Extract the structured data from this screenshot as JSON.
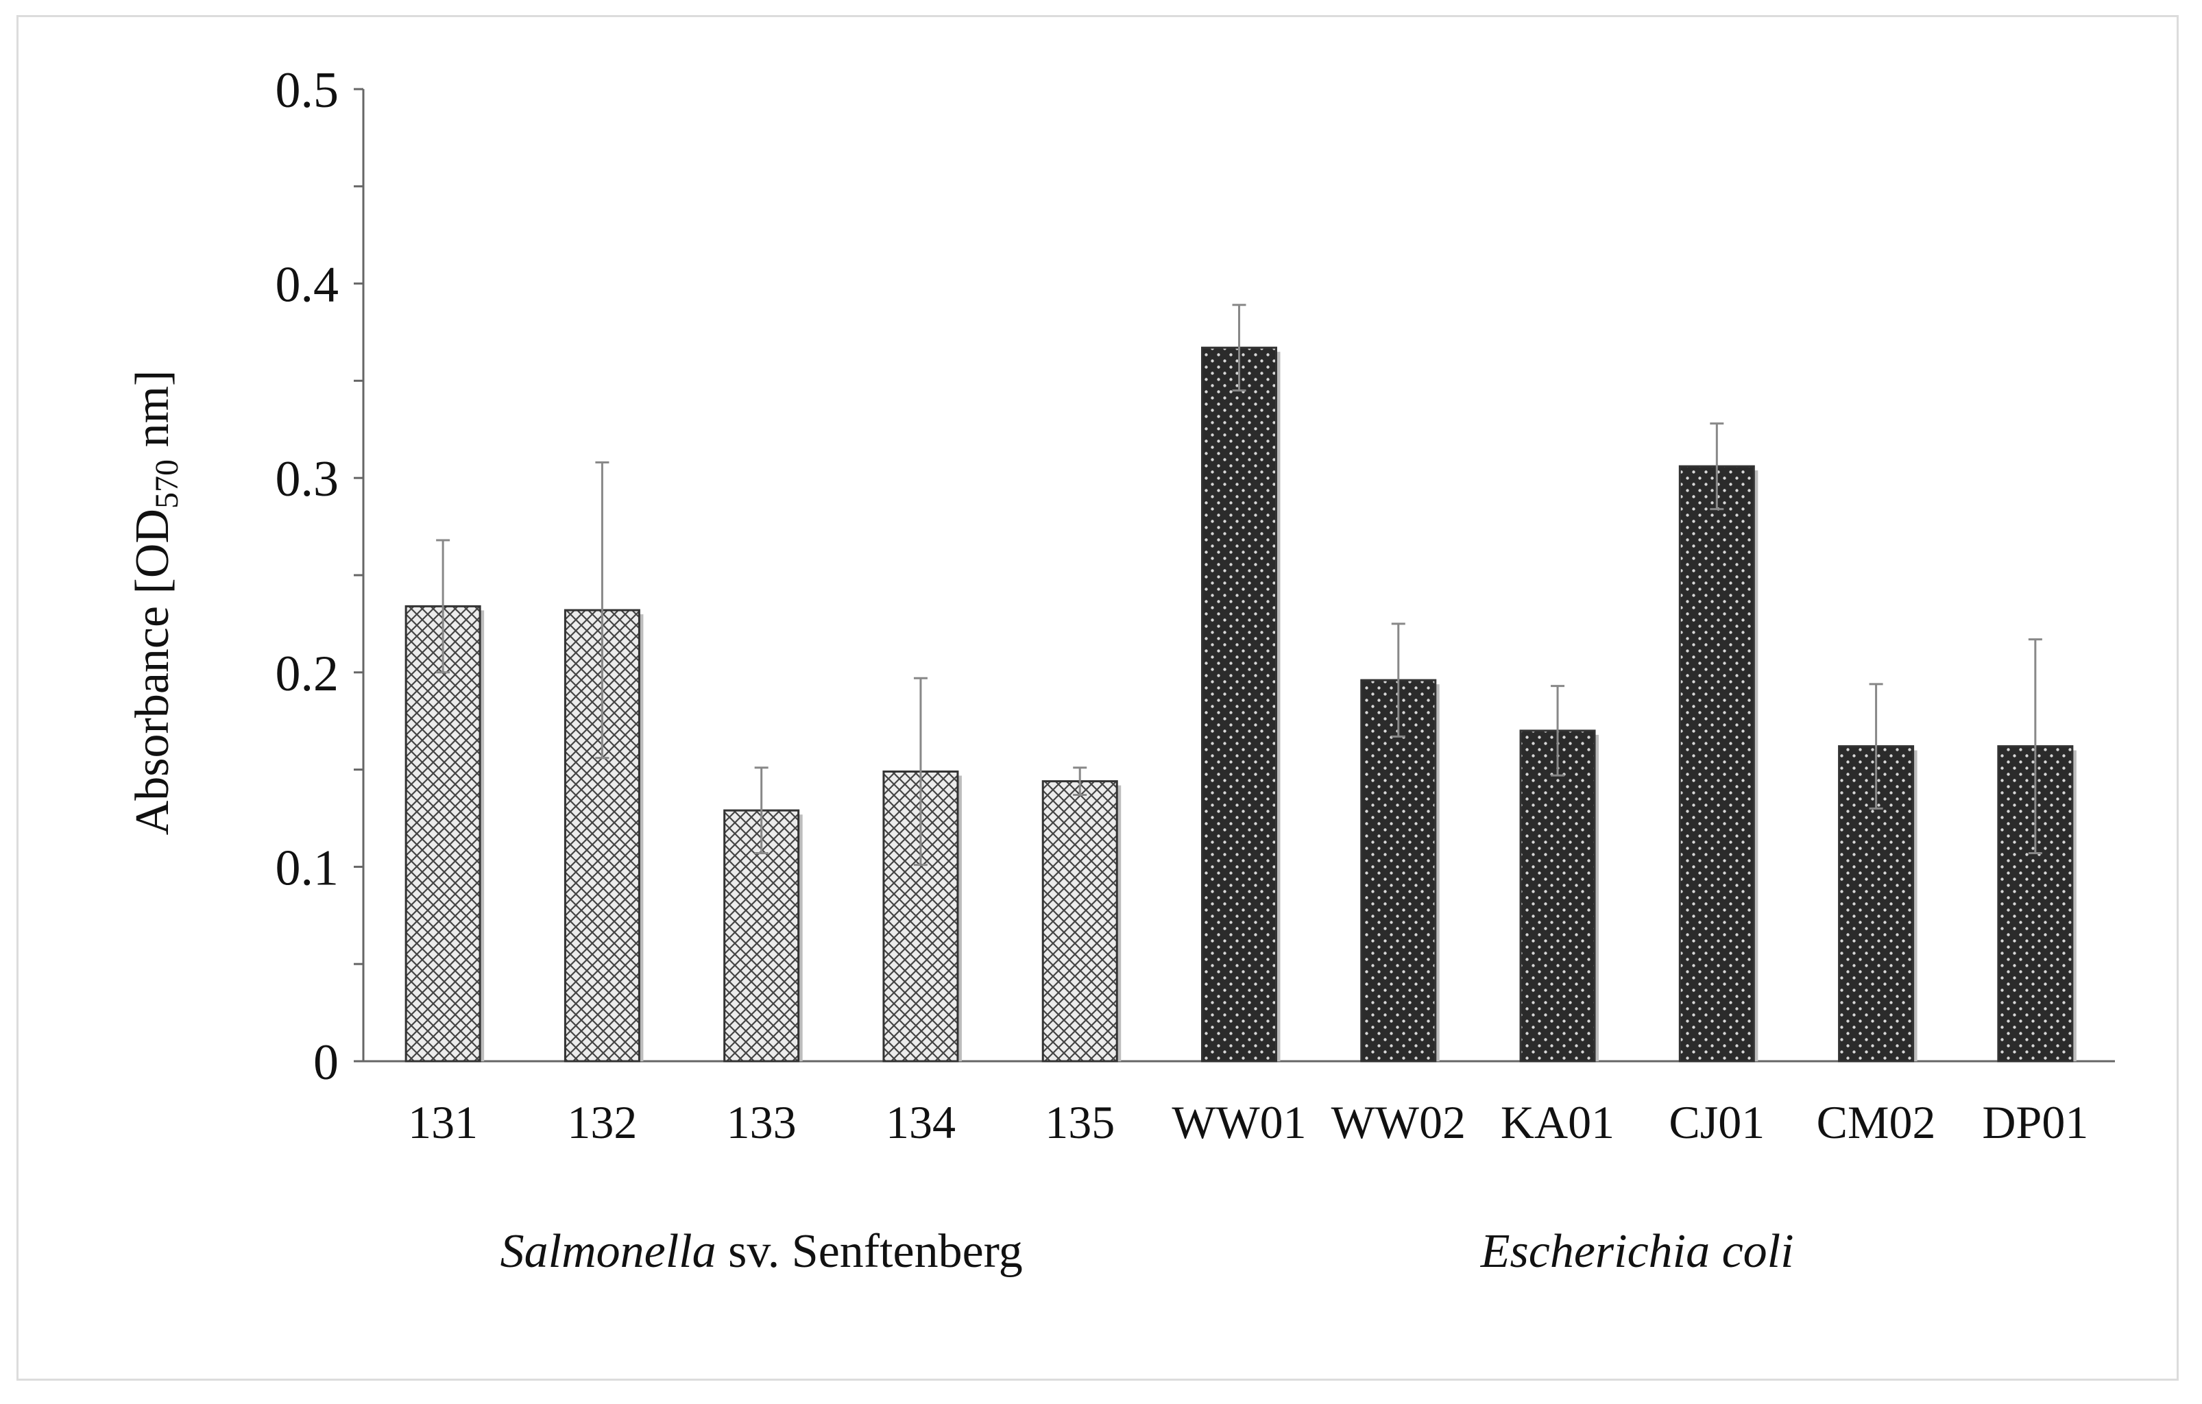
{
  "chart_data": {
    "type": "bar",
    "title": "",
    "xlabel": "",
    "ylabel": "Absorbance [OD570 nm]",
    "ylabel_parts": {
      "prefix": "Absorbance [OD",
      "subscript": "570",
      "suffix": " nm]"
    },
    "ylim": [
      0,
      0.5
    ],
    "yticks": [
      {
        "value": 0,
        "label": "0"
      },
      {
        "value": 0.1,
        "label": "0.1"
      },
      {
        "value": 0.2,
        "label": "0.2"
      },
      {
        "value": 0.3,
        "label": "0.3"
      },
      {
        "value": 0.4,
        "label": "0.4"
      },
      {
        "value": 0.5,
        "label": "0.5"
      }
    ],
    "minor_tick_step": 0.05,
    "grid": false,
    "categories": [
      "131",
      "132",
      "133",
      "134",
      "135",
      "WW01",
      "WW02",
      "KA01",
      "CJ01",
      "CM02",
      "DP01"
    ],
    "values": [
      0.234,
      0.232,
      0.129,
      0.149,
      0.144,
      0.367,
      0.196,
      0.17,
      0.306,
      0.162,
      0.162
    ],
    "errors": [
      0.034,
      0.076,
      0.022,
      0.048,
      0.007,
      0.022,
      0.029,
      0.023,
      0.022,
      0.032,
      0.055
    ],
    "groups": [
      {
        "italic": "Salmonella",
        "normal": " sv. Senftenberg",
        "indices": [
          0,
          1,
          2,
          3,
          4
        ],
        "color": "#e8e8e8",
        "pattern": "crosshatch"
      },
      {
        "italic": "Escherichia coli",
        "normal": "",
        "indices": [
          5,
          6,
          7,
          8,
          9,
          10
        ],
        "color": "#2e2e2e",
        "pattern": "dots"
      }
    ]
  }
}
